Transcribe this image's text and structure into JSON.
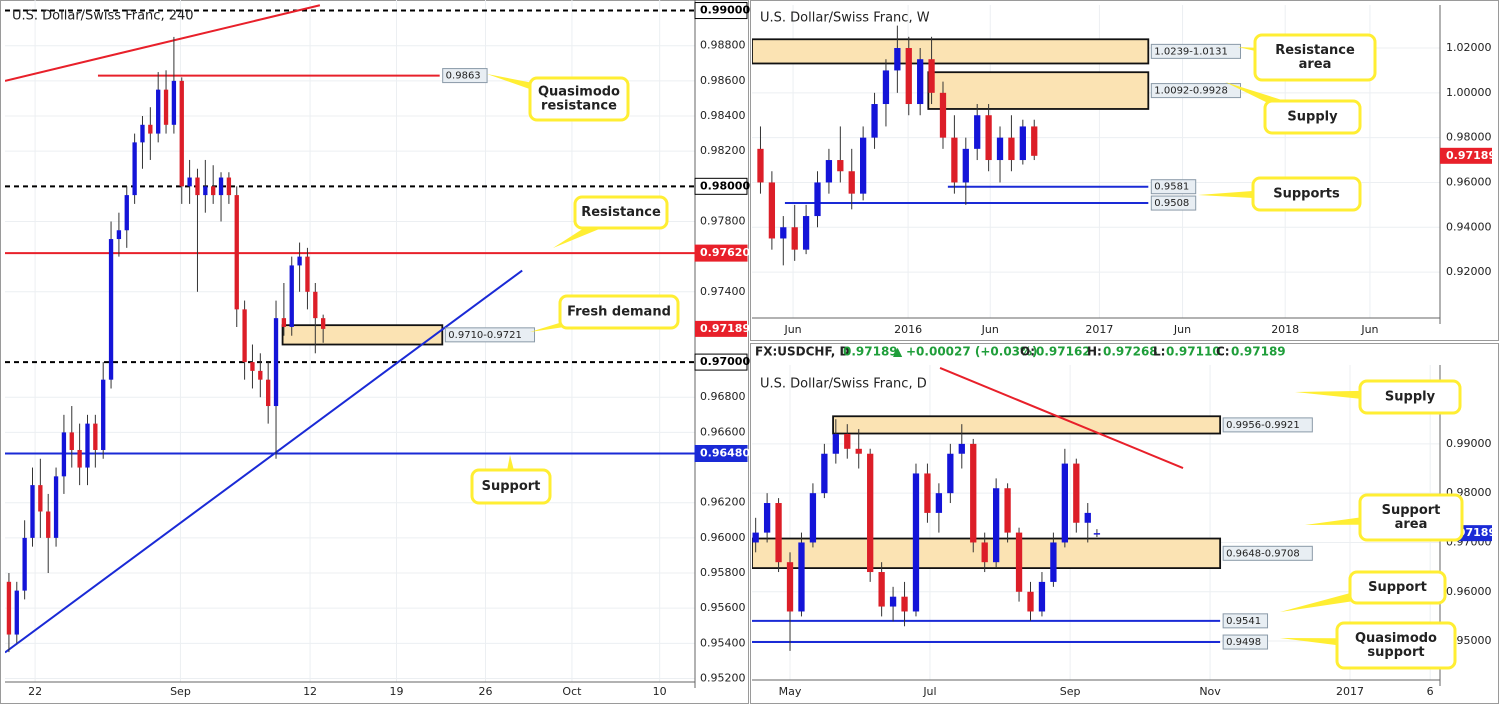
{
  "chart_data": [
    {
      "type": "candlestick",
      "title": "U.S. Dollar/Swiss Franc, 240",
      "xlim": [
        19.7,
        72.4
      ],
      "ylim": [
        0.9518,
        0.9906
      ],
      "xticks": [
        {
          "value": 22,
          "label": "22"
        },
        {
          "value": 33.1,
          "label": "Sep"
        },
        {
          "value": 43,
          "label": "12"
        },
        {
          "value": 49.6,
          "label": "19"
        },
        {
          "value": 56.4,
          "label": "26"
        },
        {
          "value": 63,
          "label": "Oct"
        },
        {
          "value": 69.7,
          "label": "10"
        }
      ],
      "yticks": [
        {
          "value": 0.952,
          "label": "0.95200"
        },
        {
          "value": 0.954,
          "label": "0.95400"
        },
        {
          "value": 0.956,
          "label": "0.95600"
        },
        {
          "value": 0.958,
          "label": "0.95800"
        },
        {
          "value": 0.96,
          "label": "0.96000"
        },
        {
          "value": 0.962,
          "label": "0.96200"
        },
        {
          "value": 0.966,
          "label": "0.96600"
        },
        {
          "value": 0.968,
          "label": "0.96800"
        },
        {
          "value": 0.974,
          "label": "0.97400"
        },
        {
          "value": 0.978,
          "label": "0.97800"
        },
        {
          "value": 0.982,
          "label": "0.98200"
        },
        {
          "value": 0.984,
          "label": "0.98400"
        },
        {
          "value": 0.986,
          "label": "0.98600"
        },
        {
          "value": 0.988,
          "label": "0.98800"
        }
      ],
      "up_color": "#1414d8",
      "down_color": "#dc1e28",
      "x": [
        20.0,
        20.6,
        21.2,
        21.8,
        22.4,
        23.0,
        23.6,
        24.2,
        24.8,
        25.4,
        26.0,
        26.6,
        27.2,
        27.8,
        28.4,
        29.0,
        29.6,
        30.2,
        30.8,
        31.4,
        32.0,
        32.6,
        33.2,
        33.8,
        34.4,
        35.0,
        35.6,
        36.2,
        36.8,
        37.4,
        38.0,
        38.6,
        39.2,
        39.8,
        40.4,
        41.0,
        41.6,
        42.2,
        42.8,
        43.4,
        44.0
      ],
      "open": [
        0.9575,
        0.9545,
        0.957,
        0.96,
        0.963,
        0.9615,
        0.96,
        0.9635,
        0.966,
        0.965,
        0.964,
        0.9665,
        0.965,
        0.969,
        0.977,
        0.9775,
        0.9795,
        0.9825,
        0.9835,
        0.983,
        0.9855,
        0.9835,
        0.986,
        0.98,
        0.9805,
        0.9795,
        0.98,
        0.9795,
        0.9805,
        0.9795,
        0.973,
        0.97,
        0.9695,
        0.969,
        0.9675,
        0.9725,
        0.972,
        0.9755,
        0.976,
        0.974,
        0.9725
      ],
      "high": [
        0.958,
        0.9575,
        0.961,
        0.964,
        0.9645,
        0.9625,
        0.964,
        0.967,
        0.9675,
        0.9665,
        0.967,
        0.967,
        0.97,
        0.978,
        0.9785,
        0.98,
        0.983,
        0.984,
        0.9845,
        0.9865,
        0.9866,
        0.9885,
        0.9862,
        0.9815,
        0.981,
        0.9815,
        0.9812,
        0.9808,
        0.9808,
        0.98,
        0.9735,
        0.971,
        0.9705,
        0.97,
        0.9735,
        0.9745,
        0.976,
        0.9768,
        0.9765,
        0.9745,
        0.9727
      ],
      "low": [
        0.9535,
        0.954,
        0.9565,
        0.9595,
        0.96,
        0.958,
        0.9595,
        0.9625,
        0.964,
        0.963,
        0.963,
        0.964,
        0.9645,
        0.9685,
        0.976,
        0.9765,
        0.979,
        0.981,
        0.9815,
        0.9825,
        0.983,
        0.983,
        0.979,
        0.979,
        0.974,
        0.9785,
        0.979,
        0.978,
        0.979,
        0.972,
        0.969,
        0.9685,
        0.968,
        0.9665,
        0.9645,
        0.9715,
        0.9715,
        0.974,
        0.973,
        0.9705,
        0.9711
      ],
      "close": [
        0.9545,
        0.957,
        0.96,
        0.963,
        0.9615,
        0.96,
        0.9635,
        0.966,
        0.965,
        0.964,
        0.9665,
        0.965,
        0.969,
        0.977,
        0.9775,
        0.9795,
        0.9825,
        0.9835,
        0.983,
        0.9855,
        0.9835,
        0.986,
        0.98,
        0.9805,
        0.9795,
        0.98,
        0.9795,
        0.9805,
        0.9795,
        0.973,
        0.97,
        0.9695,
        0.969,
        0.9675,
        0.9725,
        0.972,
        0.9755,
        0.976,
        0.974,
        0.9725,
        0.97189
      ],
      "zones": [
        {
          "low": 0.971,
          "high": 0.9721,
          "from": 40.9,
          "to": 53.1,
          "label": "0.9710-0.9721"
        }
      ],
      "levels": [
        {
          "value": 0.99,
          "color": "#000000",
          "dash": true,
          "axis_label": "0.99000"
        },
        {
          "value": 0.98,
          "color": "#000000",
          "dash": true,
          "axis_label": "0.98000"
        },
        {
          "value": 0.97,
          "color": "#000000",
          "dash": true,
          "axis_label": "0.97000"
        },
        {
          "value": 0.9762,
          "color": "#e8202a",
          "axis_label": "0.97620"
        },
        {
          "value": 0.9648,
          "color": "#1a2ad6",
          "axis_label": "0.96480"
        },
        {
          "value": 0.9863,
          "color": "#e8202a",
          "from": 26.8,
          "to": 52.9,
          "label": "0.9863"
        }
      ],
      "trendlines": [
        {
          "x": [
            19.7,
            43.75
          ],
          "y": [
            0.986,
            0.9903
          ],
          "color": "#e8202a"
        },
        {
          "x": [
            19.7,
            59.2
          ],
          "y": [
            0.95348,
            0.97521
          ],
          "color": "#1a2ad6"
        }
      ],
      "last_price": {
        "value": 0.97189,
        "label": "0.97189",
        "color": "#e8202a"
      },
      "callouts": [
        {
          "text": [
            "Quasimodo",
            "resistance"
          ]
        },
        {
          "text": [
            "Resistance"
          ]
        },
        {
          "text": [
            "Fresh demand"
          ]
        },
        {
          "text": [
            "Support"
          ]
        }
      ]
    },
    {
      "type": "candlestick",
      "title": "U.S. Dollar/Swiss Franc, W",
      "xlim": [
        2.48,
        44.7
      ],
      "ylim": [
        0.8995,
        1.0392
      ],
      "xticks": [
        {
          "value": 5,
          "label": "Jun"
        },
        {
          "value": 12.06,
          "label": "2016"
        },
        {
          "value": 17.1,
          "label": "Jun"
        },
        {
          "value": 23.8,
          "label": "2017"
        },
        {
          "value": 28.9,
          "label": "Jun"
        },
        {
          "value": 35.2,
          "label": "2018"
        },
        {
          "value": 40.4,
          "label": "Jun"
        }
      ],
      "yticks": [
        {
          "value": 0.92,
          "label": "0.92000"
        },
        {
          "value": 0.94,
          "label": "0.94000"
        },
        {
          "value": 0.96,
          "label": "0.96000"
        },
        {
          "value": 0.98,
          "label": "0.98000"
        },
        {
          "value": 1.0,
          "label": "1.00000"
        },
        {
          "value": 1.02,
          "label": "1.02000"
        }
      ],
      "up_color": "#1414d8",
      "down_color": "#dc1e28",
      "x": [
        3.0,
        3.7,
        4.4,
        5.1,
        5.8,
        6.5,
        7.2,
        7.9,
        8.6,
        9.3,
        10.0,
        10.7,
        11.4,
        12.1,
        12.8,
        13.5,
        14.2,
        14.9,
        15.6,
        16.3,
        17.0,
        17.7,
        18.4,
        19.1,
        19.8
      ],
      "open": [
        0.975,
        0.96,
        0.935,
        0.94,
        0.93,
        0.945,
        0.96,
        0.97,
        0.965,
        0.955,
        0.98,
        0.995,
        1.01,
        1.02,
        0.995,
        1.015,
        1.0,
        0.98,
        0.96,
        0.975,
        0.99,
        0.97,
        0.98,
        0.97,
        0.985
      ],
      "high": [
        0.985,
        0.965,
        0.945,
        0.95,
        0.95,
        0.965,
        0.975,
        0.985,
        0.975,
        0.985,
        1.0,
        1.015,
        1.03,
        1.025,
        1.02,
        1.025,
        1.005,
        0.99,
        0.98,
        0.995,
        0.995,
        0.985,
        0.99,
        0.988,
        0.988
      ],
      "low": [
        0.955,
        0.93,
        0.923,
        0.925,
        0.928,
        0.94,
        0.955,
        0.96,
        0.948,
        0.952,
        0.975,
        0.985,
        1.0,
        0.99,
        0.99,
        0.995,
        0.975,
        0.955,
        0.95,
        0.97,
        0.965,
        0.96,
        0.965,
        0.968,
        0.97
      ],
      "close": [
        0.96,
        0.935,
        0.94,
        0.93,
        0.945,
        0.96,
        0.97,
        0.965,
        0.955,
        0.98,
        0.995,
        1.01,
        1.02,
        0.995,
        1.015,
        1.0,
        0.98,
        0.96,
        0.975,
        0.99,
        0.97,
        0.98,
        0.97,
        0.985,
        0.97189
      ],
      "zones": [
        {
          "low": 1.0131,
          "high": 1.0239,
          "from": 2.48,
          "to": 26.8,
          "label": "1.0239-1.0131"
        },
        {
          "low": 0.9928,
          "high": 1.0092,
          "from": 13.3,
          "to": 26.8,
          "label": "1.0092-0.9928"
        }
      ],
      "levels": [
        {
          "value": 0.9581,
          "color": "#1a2ad6",
          "from": 14.5,
          "to": 26.8,
          "label": "0.9581"
        },
        {
          "value": 0.9508,
          "color": "#1a2ad6",
          "from": 4.5,
          "to": 26.8,
          "label": "0.9508"
        }
      ],
      "trendlines": [],
      "last_price": {
        "value": 0.97189,
        "label": "0.97189",
        "color": "#e8202a"
      },
      "callouts": [
        {
          "text": [
            "Resistance",
            "area"
          ]
        },
        {
          "text": [
            "Supply"
          ]
        },
        {
          "text": [
            "Supports"
          ]
        }
      ]
    },
    {
      "type": "candlestick",
      "title": "U.S. Dollar/Swiss Franc, D",
      "xlim": [
        13.4,
        313.8
      ],
      "ylim": [
        0.9421,
        1.006
      ],
      "xticks": [
        {
          "value": 30,
          "label": "May"
        },
        {
          "value": 91.1,
          "label": "Jul"
        },
        {
          "value": 152.3,
          "label": "Sep"
        },
        {
          "value": 213.4,
          "label": "Nov"
        },
        {
          "value": 274.5,
          "label": "2017"
        },
        {
          "value": 309.5,
          "label": "6"
        }
      ],
      "yticks": [
        {
          "value": 0.95,
          "label": "0.95000"
        },
        {
          "value": 0.96,
          "label": "0.96000"
        },
        {
          "value": 0.97,
          "label": "0.97000"
        },
        {
          "value": 0.98,
          "label": "0.98000"
        },
        {
          "value": 0.99,
          "label": "0.99000"
        }
      ],
      "up_color": "#1414d8",
      "down_color": "#dc1e28",
      "x": [
        15,
        20,
        25,
        30,
        35,
        40,
        45,
        50,
        55,
        60,
        65,
        70,
        75,
        80,
        85,
        90,
        95,
        100,
        105,
        110,
        115,
        120,
        125,
        130,
        135,
        140,
        145,
        150,
        155,
        160,
        164
      ],
      "open": [
        0.97,
        0.972,
        0.978,
        0.966,
        0.956,
        0.97,
        0.98,
        0.988,
        0.992,
        0.989,
        0.988,
        0.964,
        0.957,
        0.959,
        0.956,
        0.984,
        0.976,
        0.98,
        0.988,
        0.99,
        0.97,
        0.966,
        0.981,
        0.972,
        0.96,
        0.956,
        0.962,
        0.97,
        0.986,
        0.974,
        0.9716
      ],
      "high": [
        0.975,
        0.98,
        0.979,
        0.968,
        0.972,
        0.982,
        0.99,
        0.995,
        0.994,
        0.993,
        0.989,
        0.966,
        0.961,
        0.962,
        0.986,
        0.986,
        0.982,
        0.99,
        0.994,
        0.991,
        0.972,
        0.983,
        0.982,
        0.973,
        0.962,
        0.964,
        0.972,
        0.989,
        0.987,
        0.978,
        0.9727
      ],
      "low": [
        0.968,
        0.97,
        0.964,
        0.948,
        0.955,
        0.969,
        0.979,
        0.986,
        0.987,
        0.985,
        0.962,
        0.955,
        0.954,
        0.953,
        0.955,
        0.974,
        0.972,
        0.978,
        0.985,
        0.968,
        0.964,
        0.965,
        0.97,
        0.958,
        0.9541,
        0.955,
        0.961,
        0.969,
        0.972,
        0.97,
        0.9711
      ],
      "close": [
        0.972,
        0.978,
        0.966,
        0.956,
        0.97,
        0.98,
        0.988,
        0.992,
        0.989,
        0.988,
        0.964,
        0.957,
        0.959,
        0.956,
        0.984,
        0.976,
        0.98,
        0.988,
        0.99,
        0.97,
        0.966,
        0.981,
        0.972,
        0.96,
        0.956,
        0.962,
        0.97,
        0.986,
        0.974,
        0.976,
        0.97189
      ],
      "zones": [
        {
          "low": 0.9921,
          "high": 0.9956,
          "from": 48.8,
          "to": 217.8,
          "label": "0.9956-0.9921"
        },
        {
          "low": 0.9648,
          "high": 0.9708,
          "from": 13.4,
          "to": 217.8,
          "label": "0.9648-0.9708"
        }
      ],
      "levels": [
        {
          "value": 0.9541,
          "color": "#1a2ad6",
          "from": 13.4,
          "to": 217.8,
          "label": "0.9541"
        },
        {
          "value": 0.9498,
          "color": "#1a2ad6",
          "from": 13.4,
          "to": 217.8,
          "label": "0.9498"
        }
      ],
      "trendlines": [
        {
          "x": [
            95.5,
            201.6
          ],
          "y": [
            1.0054,
            0.9851
          ],
          "color": "#e8202a"
        }
      ],
      "last_price": {
        "value": 0.97189,
        "label": "0.97189",
        "color": "#1a2ad6"
      },
      "callouts": [
        {
          "text": [
            "Supply"
          ]
        },
        {
          "text": [
            "Support",
            "area"
          ]
        },
        {
          "text": [
            "Support"
          ]
        },
        {
          "text": [
            "Quasimodo",
            "support"
          ]
        }
      ]
    }
  ],
  "info_bar": {
    "symbol": "FX:USDCHF, D",
    "price": "0.97189",
    "arrow": "▲",
    "change": "+0.00027 (+0.03%)",
    "open_label": "O:",
    "open": "0.97162",
    "high_label": "H:",
    "high": "0.97268",
    "low_label": "L:",
    "low": "0.97110",
    "close_label": "C:",
    "close": "0.97189"
  }
}
